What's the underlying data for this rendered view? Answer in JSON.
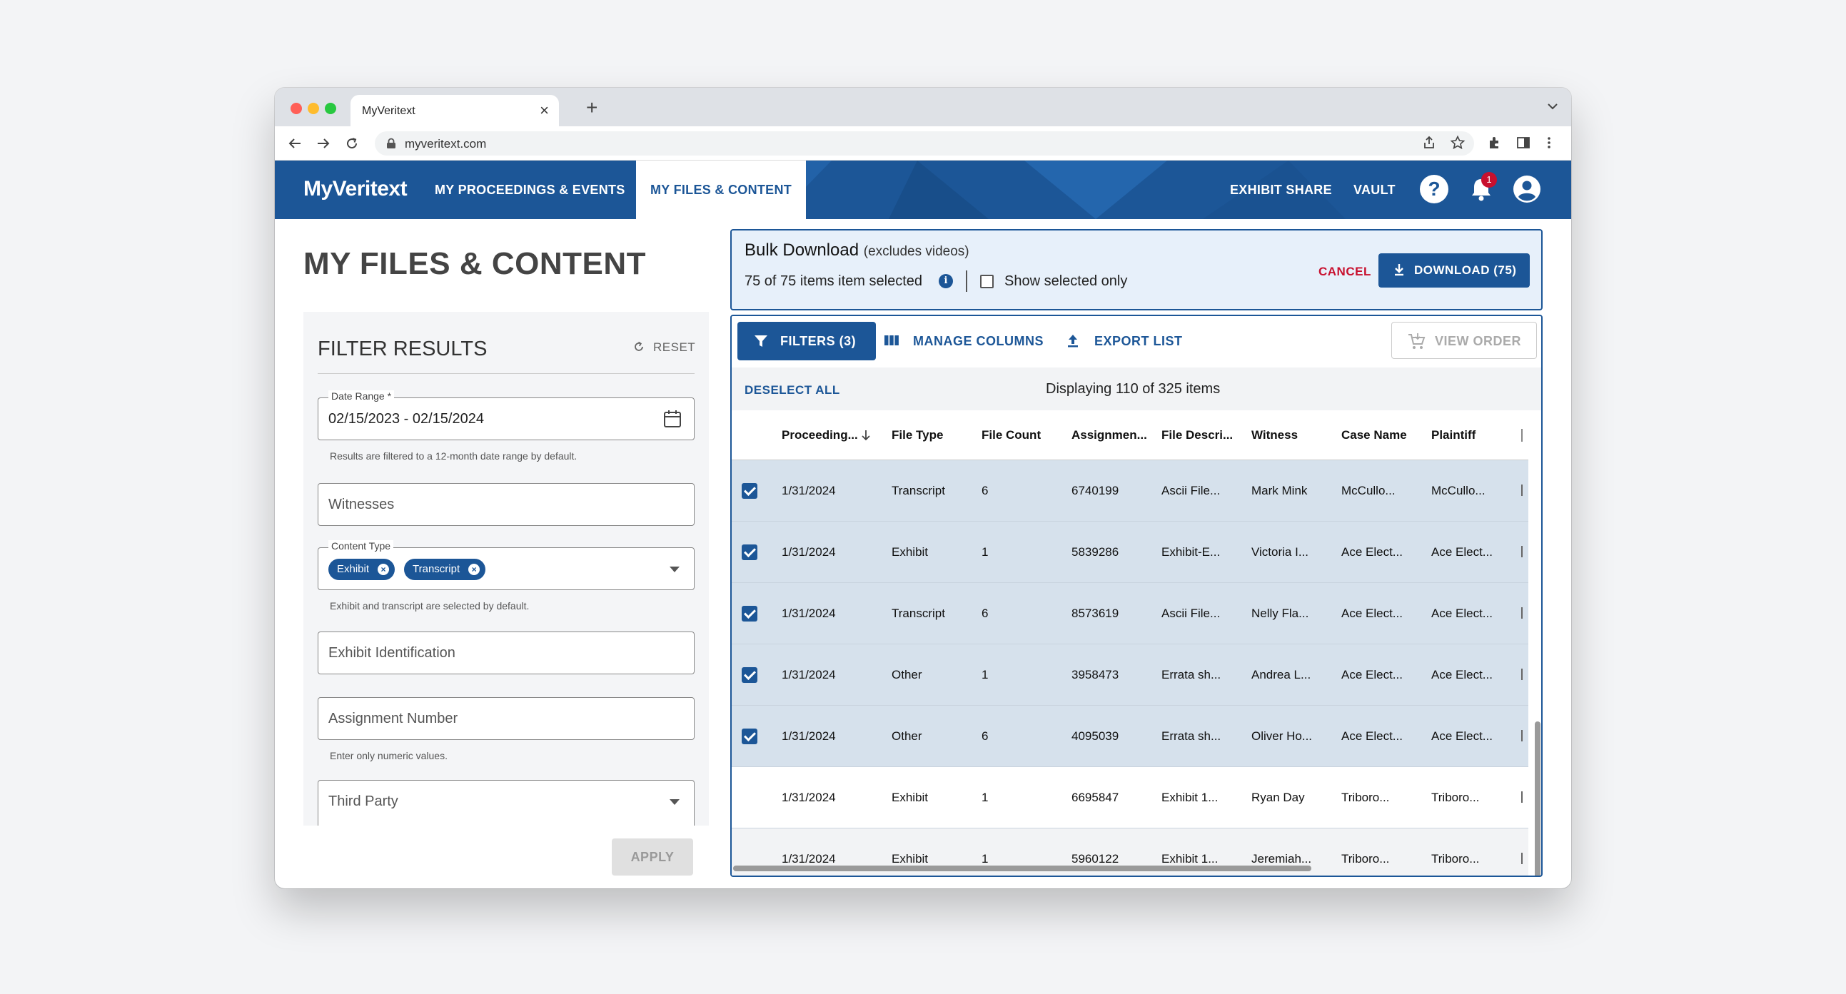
{
  "browser": {
    "tab_title": "MyVeritext",
    "tab_close": "×",
    "new_tab": "+",
    "url": "myveritext.com"
  },
  "header": {
    "logo": "MyVeritext",
    "nav": [
      "MY PROCEEDINGS & EVENTS",
      "MY FILES & CONTENT"
    ],
    "active_nav": "MY FILES & CONTENT",
    "right_links": [
      "EXHIBIT SHARE",
      "VAULT"
    ],
    "help_label": "?",
    "notification_count": "1"
  },
  "page": {
    "title": "MY FILES & CONTENT"
  },
  "filters": {
    "heading": "FILTER RESULTS",
    "reset_label": "RESET",
    "date_range": {
      "label": "Date Range *",
      "value": "02/15/2023 - 02/15/2024",
      "hint": "Results are filtered to a 12-month date range by default."
    },
    "witnesses_placeholder": "Witnesses",
    "content_type": {
      "label": "Content Type",
      "chips": [
        "Exhibit",
        "Transcript"
      ],
      "hint": "Exhibit and transcript are selected by default."
    },
    "exhibit_id_placeholder": "Exhibit Identification",
    "assignment_number": {
      "placeholder": "Assignment Number",
      "hint": "Enter only numeric values."
    },
    "third_party_placeholder": "Third Party",
    "apply_label": "APPLY"
  },
  "bulk": {
    "title": "Bulk Download",
    "subtitle": "(excludes videos)",
    "count_text": "75 of 75 items item selected",
    "show_selected_label": "Show selected only",
    "cancel_label": "CANCEL",
    "download_label": "DOWNLOAD (75)"
  },
  "table": {
    "toolbar": {
      "filters_label": "FILTERS (3)",
      "manage_columns_label": "MANAGE COLUMNS",
      "export_label": "EXPORT LIST",
      "view_order_label": "VIEW ORDER"
    },
    "deselect_label": "DESELECT ALL",
    "displaying_text": "Displaying 110 of 325 items",
    "columns": [
      "Proceeding...",
      "File Type",
      "File Count",
      "Assignmen...",
      "File Descri...",
      "Witness",
      "Case Name",
      "Plaintiff"
    ],
    "rows": [
      {
        "selected": true,
        "cells": [
          "1/31/2024",
          "Transcript",
          "6",
          "6740199",
          "Ascii File...",
          "Mark Mink",
          "McCullo...",
          "McCullo..."
        ]
      },
      {
        "selected": true,
        "cells": [
          "1/31/2024",
          "Exhibit",
          "1",
          "5839286",
          "Exhibit-E...",
          "Victoria I...",
          "Ace Elect...",
          "Ace Elect..."
        ]
      },
      {
        "selected": true,
        "cells": [
          "1/31/2024",
          "Transcript",
          "6",
          "8573619",
          "Ascii File...",
          "Nelly Fla...",
          "Ace Elect...",
          "Ace Elect..."
        ]
      },
      {
        "selected": true,
        "cells": [
          "1/31/2024",
          "Other",
          "1",
          "3958473",
          "Errata sh...",
          "Andrea L...",
          "Ace Elect...",
          "Ace Elect..."
        ]
      },
      {
        "selected": true,
        "cells": [
          "1/31/2024",
          "Other",
          "6",
          "4095039",
          "Errata sh...",
          "Oliver Ho...",
          "Ace Elect...",
          "Ace Elect..."
        ]
      },
      {
        "selected": false,
        "cells": [
          "1/31/2024",
          "Exhibit",
          "1",
          "6695847",
          "Exhibit 1...",
          "Ryan Day",
          "Triboro...",
          "Triboro..."
        ]
      },
      {
        "selected": false,
        "cells": [
          "1/31/2024",
          "Exhibit",
          "1",
          "5960122",
          "Exhibit 1...",
          "Jeremiah...",
          "Triboro...",
          "Triboro..."
        ]
      }
    ]
  },
  "colors": {
    "brand_blue": "#1c5697",
    "selected_row": "#d6e1ec",
    "cancel_red": "#c8102e"
  }
}
